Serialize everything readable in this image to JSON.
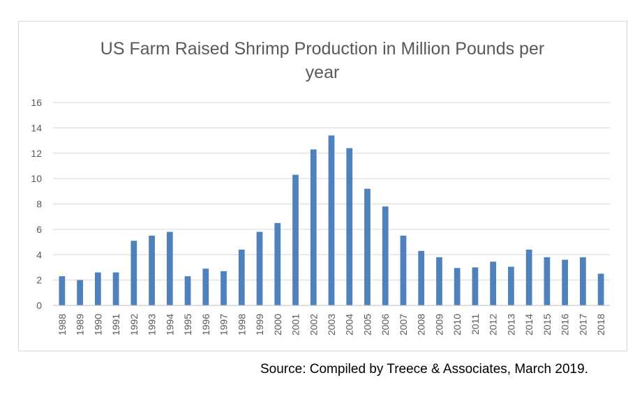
{
  "chart_data": {
    "type": "bar",
    "title_lines": [
      "US Farm Raised Shrimp Production in Million Pounds per",
      "year"
    ],
    "xlabel": "",
    "ylabel": "",
    "ylim": [
      0,
      16
    ],
    "yticks": [
      0,
      2,
      4,
      6,
      8,
      10,
      12,
      14,
      16
    ],
    "grid": true,
    "legend": "none",
    "bar_color": "#4f81bd",
    "categories": [
      "1988",
      "1989",
      "1990",
      "1991",
      "1992",
      "1993",
      "1994",
      "1995",
      "1996",
      "1997",
      "1998",
      "1999",
      "2000",
      "2001",
      "2002",
      "2003",
      "2004",
      "2005",
      "2006",
      "2007",
      "2008",
      "2009",
      "2010",
      "2011",
      "2012",
      "2013",
      "2014",
      "2015",
      "2016",
      "2017",
      "2018"
    ],
    "values": [
      2.3,
      2.0,
      2.6,
      2.6,
      5.1,
      5.5,
      5.8,
      2.3,
      2.9,
      2.7,
      4.4,
      5.8,
      6.5,
      10.3,
      12.3,
      13.4,
      12.4,
      9.2,
      7.8,
      5.5,
      4.3,
      3.8,
      2.95,
      3.0,
      3.45,
      3.05,
      4.4,
      3.8,
      3.6,
      3.8,
      2.5
    ]
  },
  "source": "Source:  Compiled by Treece & Associates, March 2019."
}
